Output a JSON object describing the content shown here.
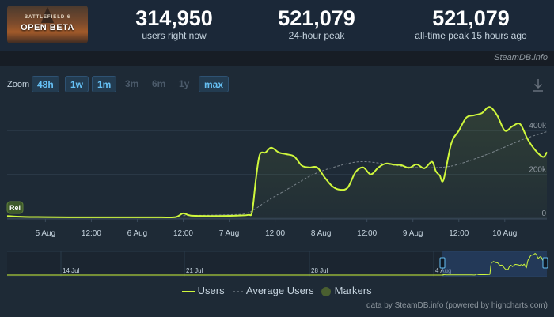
{
  "header": {
    "logo": {
      "top_text": "BATTLEFIELD 6",
      "title": "OPEN BETA"
    },
    "stats": [
      {
        "value": "314,950",
        "label": "users right now"
      },
      {
        "value": "521,079",
        "label": "24-hour peak"
      },
      {
        "value": "521,079",
        "label": "all-time peak 15 hours ago"
      }
    ],
    "brand": "SteamDB.info"
  },
  "zoom": {
    "label": "Zoom",
    "options": [
      {
        "label": "48h",
        "active": true
      },
      {
        "label": "1w",
        "active": true
      },
      {
        "label": "1m",
        "active": true
      },
      {
        "label": "3m",
        "active": false
      },
      {
        "label": "6m",
        "active": false
      },
      {
        "label": "1y",
        "active": false
      },
      {
        "label": "max",
        "active": true
      }
    ]
  },
  "chart_data": {
    "type": "line",
    "x_tick_labels": [
      "5 Aug",
      "12:00",
      "6 Aug",
      "12:00",
      "7 Aug",
      "12:00",
      "8 Aug",
      "12:00",
      "9 Aug",
      "12:00",
      "10 Aug"
    ],
    "y_tick_labels": [
      "0",
      "200k",
      "400k"
    ],
    "ylim": [
      0,
      520000
    ],
    "marker": {
      "label": "Rel"
    },
    "series": [
      {
        "name": "Users",
        "color": "#cff73c",
        "x": [
          "2025-08-04 14:00",
          "2025-08-04 18:00",
          "2025-08-05 00:00",
          "2025-08-05 06:00",
          "2025-08-05 12:00",
          "2025-08-05 18:00",
          "2025-08-06 00:00",
          "2025-08-06 06:00",
          "2025-08-06 10:00",
          "2025-08-06 12:00",
          "2025-08-06 14:00",
          "2025-08-06 20:00",
          "2025-08-07 02:00",
          "2025-08-07 05:00",
          "2025-08-07 06:00",
          "2025-08-07 07:00",
          "2025-08-07 08:00",
          "2025-08-07 09:30",
          "2025-08-07 11:00",
          "2025-08-07 13:00",
          "2025-08-07 15:00",
          "2025-08-07 17:00",
          "2025-08-07 19:00",
          "2025-08-07 21:00",
          "2025-08-07 23:00",
          "2025-08-08 01:00",
          "2025-08-08 03:00",
          "2025-08-08 05:00",
          "2025-08-08 07:00",
          "2025-08-08 09:00",
          "2025-08-08 11:00",
          "2025-08-08 13:00",
          "2025-08-08 15:00",
          "2025-08-08 17:00",
          "2025-08-08 19:00",
          "2025-08-08 21:00",
          "2025-08-08 23:00",
          "2025-08-09 01:00",
          "2025-08-09 03:00",
          "2025-08-09 05:00",
          "2025-08-09 06:00",
          "2025-08-09 07:00",
          "2025-08-09 08:00",
          "2025-08-09 10:00",
          "2025-08-09 12:00",
          "2025-08-09 14:00",
          "2025-08-09 16:00",
          "2025-08-09 18:00",
          "2025-08-09 20:00",
          "2025-08-09 22:00",
          "2025-08-10 00:00",
          "2025-08-10 02:00",
          "2025-08-10 04:00",
          "2025-08-10 06:00",
          "2025-08-10 08:00",
          "2025-08-10 10:00",
          "2025-08-10 11:00"
        ],
        "values": [
          10000,
          6000,
          5000,
          4000,
          4000,
          4000,
          4000,
          4000,
          5000,
          22000,
          12000,
          10000,
          12000,
          15000,
          30000,
          180000,
          290000,
          300000,
          322000,
          300000,
          292000,
          282000,
          240000,
          232000,
          232000,
          185000,
          145000,
          130000,
          140000,
          210000,
          232000,
          200000,
          232000,
          250000,
          245000,
          242000,
          230000,
          246000,
          228000,
          258000,
          215000,
          195000,
          175000,
          340000,
          400000,
          460000,
          470000,
          480000,
          508000,
          470000,
          400000,
          420000,
          430000,
          360000,
          310000,
          280000,
          302000
        ]
      },
      {
        "name": "Average Users",
        "color": "#8f98a0",
        "x": [
          "2025-08-06 12:00",
          "2025-08-07 00:00",
          "2025-08-07 05:00",
          "2025-08-07 10:00",
          "2025-08-07 16:00",
          "2025-08-07 22:00",
          "2025-08-08 04:00",
          "2025-08-08 10:00",
          "2025-08-08 16:00",
          "2025-08-08 22:00",
          "2025-08-09 04:00",
          "2025-08-09 10:00",
          "2025-08-09 16:00",
          "2025-08-09 22:00",
          "2025-08-10 04:00",
          "2025-08-10 10:00",
          "2025-08-10 11:00"
        ],
        "values": [
          12000,
          16000,
          25000,
          80000,
          140000,
          200000,
          236000,
          258000,
          250000,
          235000,
          230000,
          238000,
          270000,
          310000,
          355000,
          390000,
          395000
        ]
      },
      {
        "name": "Markers",
        "color": "#4a5f30"
      }
    ],
    "navigator": {
      "x_tick_labels": [
        "14 Jul",
        "21 Jul",
        "28 Jul",
        "4 Aug"
      ]
    }
  },
  "credit": "data by SteamDB.info (powered by highcharts.com)"
}
